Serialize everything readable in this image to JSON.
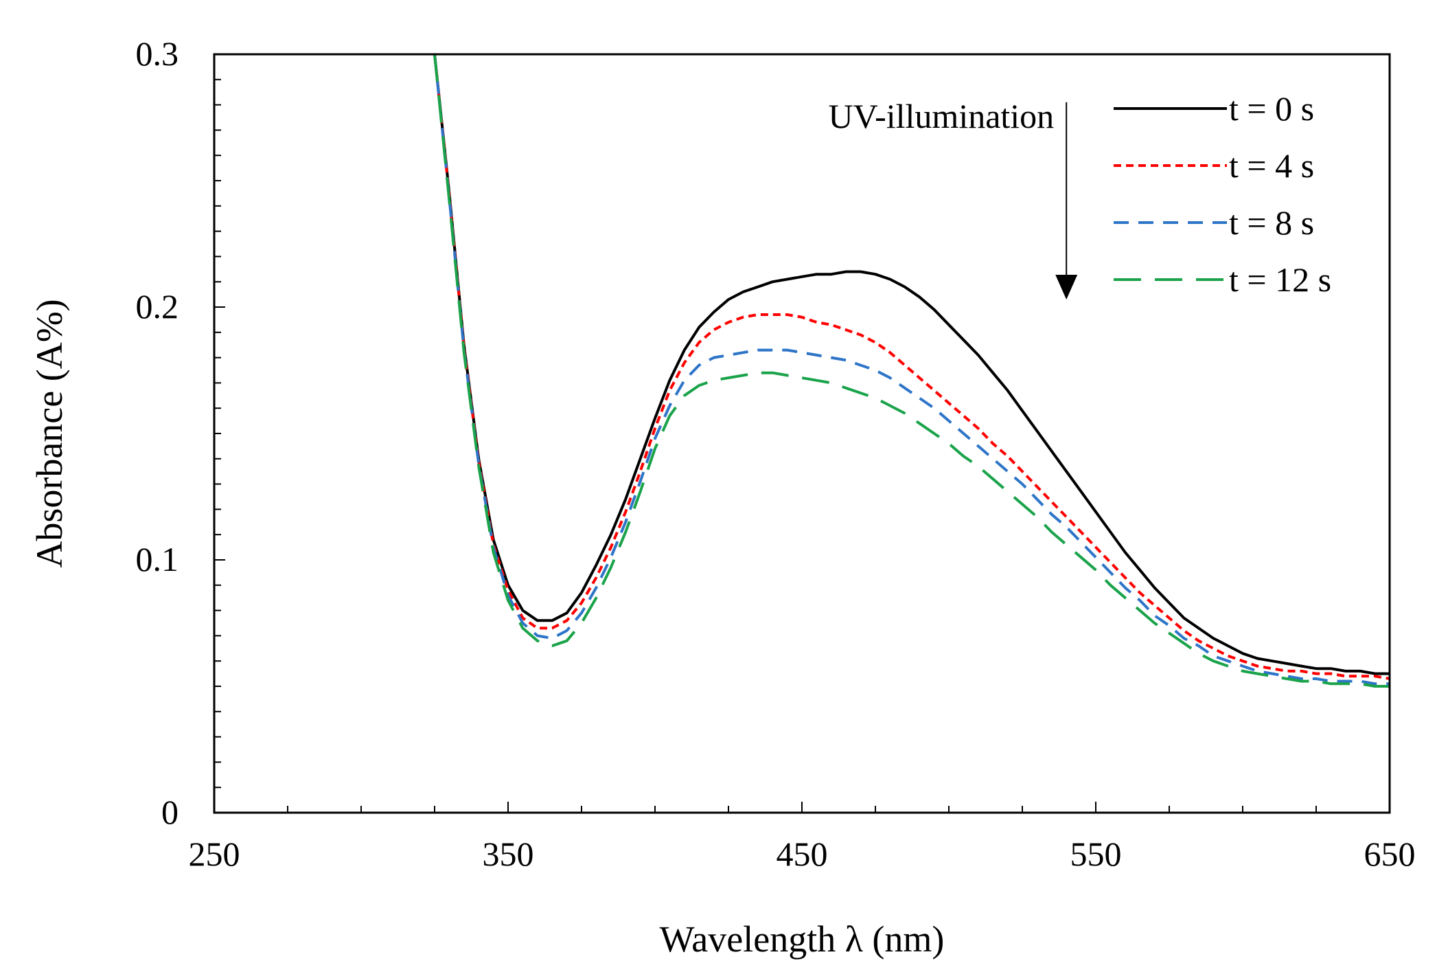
{
  "chart_data": {
    "type": "line",
    "title": "",
    "xlabel": "Wavelength λ (nm)",
    "ylabel": "Absorbance (A%)",
    "xlim": [
      250,
      650
    ],
    "ylim": [
      0,
      0.3
    ],
    "x_ticks": [
      250,
      350,
      450,
      550,
      650
    ],
    "x_tick_labels": [
      "250",
      "350",
      "450",
      "550",
      "650"
    ],
    "y_ticks": [
      0,
      0.1,
      0.2,
      0.3
    ],
    "y_tick_labels": [
      "0",
      "0.1",
      "0.2",
      "0.3"
    ],
    "grid": false,
    "legend_position": "top-right",
    "annotation": {
      "text": "UV-illumination",
      "arrow_x": 540,
      "arrow_from": 0.281,
      "arrow_to": 0.203
    },
    "series": [
      {
        "name": "t = 0 s",
        "color": "#000000",
        "style": "solid",
        "points": [
          [
            325,
            0.3
          ],
          [
            330,
            0.245
          ],
          [
            335,
            0.185
          ],
          [
            340,
            0.14
          ],
          [
            345,
            0.108
          ],
          [
            350,
            0.09
          ],
          [
            355,
            0.08
          ],
          [
            360,
            0.076
          ],
          [
            365,
            0.076
          ],
          [
            370,
            0.079
          ],
          [
            375,
            0.087
          ],
          [
            380,
            0.098
          ],
          [
            385,
            0.11
          ],
          [
            390,
            0.124
          ],
          [
            395,
            0.14
          ],
          [
            400,
            0.156
          ],
          [
            405,
            0.171
          ],
          [
            410,
            0.183
          ],
          [
            415,
            0.192
          ],
          [
            420,
            0.198
          ],
          [
            425,
            0.203
          ],
          [
            430,
            0.206
          ],
          [
            435,
            0.208
          ],
          [
            440,
            0.21
          ],
          [
            445,
            0.211
          ],
          [
            450,
            0.212
          ],
          [
            455,
            0.213
          ],
          [
            460,
            0.213
          ],
          [
            465,
            0.214
          ],
          [
            470,
            0.214
          ],
          [
            475,
            0.213
          ],
          [
            480,
            0.211
          ],
          [
            485,
            0.208
          ],
          [
            490,
            0.204
          ],
          [
            495,
            0.199
          ],
          [
            500,
            0.193
          ],
          [
            505,
            0.187
          ],
          [
            510,
            0.181
          ],
          [
            515,
            0.174
          ],
          [
            520,
            0.167
          ],
          [
            525,
            0.159
          ],
          [
            530,
            0.151
          ],
          [
            535,
            0.143
          ],
          [
            540,
            0.135
          ],
          [
            545,
            0.127
          ],
          [
            550,
            0.119
          ],
          [
            555,
            0.111
          ],
          [
            560,
            0.103
          ],
          [
            565,
            0.096
          ],
          [
            570,
            0.089
          ],
          [
            575,
            0.083
          ],
          [
            580,
            0.077
          ],
          [
            585,
            0.073
          ],
          [
            590,
            0.069
          ],
          [
            595,
            0.066
          ],
          [
            600,
            0.063
          ],
          [
            605,
            0.061
          ],
          [
            610,
            0.06
          ],
          [
            615,
            0.059
          ],
          [
            620,
            0.058
          ],
          [
            625,
            0.057
          ],
          [
            630,
            0.057
          ],
          [
            635,
            0.056
          ],
          [
            640,
            0.056
          ],
          [
            645,
            0.055
          ],
          [
            650,
            0.055
          ]
        ]
      },
      {
        "name": "t = 4 s",
        "color": "#ff0000",
        "style": "dotted",
        "points": [
          [
            325,
            0.3
          ],
          [
            330,
            0.244
          ],
          [
            335,
            0.184
          ],
          [
            340,
            0.139
          ],
          [
            345,
            0.106
          ],
          [
            350,
            0.088
          ],
          [
            355,
            0.077
          ],
          [
            360,
            0.073
          ],
          [
            365,
            0.073
          ],
          [
            370,
            0.076
          ],
          [
            375,
            0.083
          ],
          [
            380,
            0.093
          ],
          [
            385,
            0.105
          ],
          [
            390,
            0.119
          ],
          [
            395,
            0.135
          ],
          [
            400,
            0.152
          ],
          [
            405,
            0.167
          ],
          [
            410,
            0.178
          ],
          [
            415,
            0.186
          ],
          [
            420,
            0.191
          ],
          [
            425,
            0.194
          ],
          [
            430,
            0.196
          ],
          [
            435,
            0.197
          ],
          [
            440,
            0.197
          ],
          [
            445,
            0.197
          ],
          [
            450,
            0.196
          ],
          [
            455,
            0.194
          ],
          [
            460,
            0.193
          ],
          [
            465,
            0.191
          ],
          [
            470,
            0.189
          ],
          [
            475,
            0.186
          ],
          [
            480,
            0.182
          ],
          [
            485,
            0.177
          ],
          [
            490,
            0.172
          ],
          [
            495,
            0.167
          ],
          [
            500,
            0.162
          ],
          [
            505,
            0.157
          ],
          [
            510,
            0.152
          ],
          [
            515,
            0.146
          ],
          [
            520,
            0.141
          ],
          [
            525,
            0.135
          ],
          [
            530,
            0.129
          ],
          [
            535,
            0.123
          ],
          [
            540,
            0.117
          ],
          [
            545,
            0.111
          ],
          [
            550,
            0.105
          ],
          [
            555,
            0.099
          ],
          [
            560,
            0.093
          ],
          [
            565,
            0.087
          ],
          [
            570,
            0.082
          ],
          [
            575,
            0.077
          ],
          [
            580,
            0.072
          ],
          [
            585,
            0.068
          ],
          [
            590,
            0.065
          ],
          [
            595,
            0.062
          ],
          [
            600,
            0.06
          ],
          [
            605,
            0.058
          ],
          [
            610,
            0.057
          ],
          [
            615,
            0.056
          ],
          [
            620,
            0.056
          ],
          [
            625,
            0.055
          ],
          [
            630,
            0.055
          ],
          [
            635,
            0.054
          ],
          [
            640,
            0.054
          ],
          [
            645,
            0.054
          ],
          [
            650,
            0.053
          ]
        ]
      },
      {
        "name": "t = 8 s",
        "color": "#2e75c8",
        "style": "dashed",
        "points": [
          [
            325,
            0.3
          ],
          [
            330,
            0.243
          ],
          [
            335,
            0.183
          ],
          [
            340,
            0.138
          ],
          [
            345,
            0.105
          ],
          [
            350,
            0.086
          ],
          [
            355,
            0.075
          ],
          [
            360,
            0.07
          ],
          [
            365,
            0.069
          ],
          [
            370,
            0.072
          ],
          [
            375,
            0.079
          ],
          [
            380,
            0.089
          ],
          [
            385,
            0.101
          ],
          [
            390,
            0.115
          ],
          [
            395,
            0.131
          ],
          [
            400,
            0.148
          ],
          [
            405,
            0.161
          ],
          [
            410,
            0.171
          ],
          [
            415,
            0.177
          ],
          [
            420,
            0.18
          ],
          [
            425,
            0.181
          ],
          [
            430,
            0.182
          ],
          [
            435,
            0.183
          ],
          [
            440,
            0.183
          ],
          [
            445,
            0.183
          ],
          [
            450,
            0.182
          ],
          [
            455,
            0.181
          ],
          [
            460,
            0.18
          ],
          [
            465,
            0.179
          ],
          [
            470,
            0.177
          ],
          [
            475,
            0.175
          ],
          [
            480,
            0.172
          ],
          [
            485,
            0.168
          ],
          [
            490,
            0.164
          ],
          [
            495,
            0.16
          ],
          [
            500,
            0.155
          ],
          [
            505,
            0.15
          ],
          [
            510,
            0.145
          ],
          [
            515,
            0.14
          ],
          [
            520,
            0.135
          ],
          [
            525,
            0.13
          ],
          [
            530,
            0.124
          ],
          [
            535,
            0.118
          ],
          [
            540,
            0.113
          ],
          [
            545,
            0.107
          ],
          [
            550,
            0.101
          ],
          [
            555,
            0.095
          ],
          [
            560,
            0.089
          ],
          [
            565,
            0.084
          ],
          [
            570,
            0.078
          ],
          [
            575,
            0.074
          ],
          [
            580,
            0.069
          ],
          [
            585,
            0.066
          ],
          [
            590,
            0.062
          ],
          [
            595,
            0.06
          ],
          [
            600,
            0.058
          ],
          [
            605,
            0.056
          ],
          [
            610,
            0.055
          ],
          [
            615,
            0.054
          ],
          [
            620,
            0.053
          ],
          [
            625,
            0.053
          ],
          [
            630,
            0.052
          ],
          [
            635,
            0.052
          ],
          [
            640,
            0.052
          ],
          [
            645,
            0.051
          ],
          [
            650,
            0.051
          ]
        ]
      },
      {
        "name": "t = 12 s",
        "color": "#1aa34a",
        "style": "long-dashed",
        "points": [
          [
            325,
            0.3
          ],
          [
            330,
            0.242
          ],
          [
            335,
            0.182
          ],
          [
            340,
            0.137
          ],
          [
            345,
            0.103
          ],
          [
            350,
            0.084
          ],
          [
            355,
            0.073
          ],
          [
            360,
            0.068
          ],
          [
            365,
            0.066
          ],
          [
            370,
            0.068
          ],
          [
            375,
            0.075
          ],
          [
            380,
            0.085
          ],
          [
            385,
            0.097
          ],
          [
            390,
            0.111
          ],
          [
            395,
            0.127
          ],
          [
            400,
            0.144
          ],
          [
            405,
            0.157
          ],
          [
            410,
            0.165
          ],
          [
            415,
            0.169
          ],
          [
            420,
            0.171
          ],
          [
            425,
            0.172
          ],
          [
            430,
            0.173
          ],
          [
            435,
            0.174
          ],
          [
            440,
            0.174
          ],
          [
            445,
            0.173
          ],
          [
            450,
            0.172
          ],
          [
            455,
            0.171
          ],
          [
            460,
            0.17
          ],
          [
            465,
            0.168
          ],
          [
            470,
            0.166
          ],
          [
            475,
            0.164
          ],
          [
            480,
            0.161
          ],
          [
            485,
            0.158
          ],
          [
            490,
            0.154
          ],
          [
            495,
            0.15
          ],
          [
            500,
            0.146
          ],
          [
            505,
            0.141
          ],
          [
            510,
            0.137
          ],
          [
            515,
            0.132
          ],
          [
            520,
            0.127
          ],
          [
            525,
            0.122
          ],
          [
            530,
            0.117
          ],
          [
            535,
            0.111
          ],
          [
            540,
            0.106
          ],
          [
            545,
            0.101
          ],
          [
            550,
            0.096
          ],
          [
            555,
            0.09
          ],
          [
            560,
            0.085
          ],
          [
            565,
            0.08
          ],
          [
            570,
            0.075
          ],
          [
            575,
            0.071
          ],
          [
            580,
            0.067
          ],
          [
            585,
            0.063
          ],
          [
            590,
            0.06
          ],
          [
            595,
            0.058
          ],
          [
            600,
            0.056
          ],
          [
            605,
            0.055
          ],
          [
            610,
            0.054
          ],
          [
            615,
            0.053
          ],
          [
            620,
            0.052
          ],
          [
            625,
            0.052
          ],
          [
            630,
            0.051
          ],
          [
            635,
            0.051
          ],
          [
            640,
            0.051
          ],
          [
            645,
            0.05
          ],
          [
            650,
            0.05
          ]
        ]
      }
    ]
  }
}
